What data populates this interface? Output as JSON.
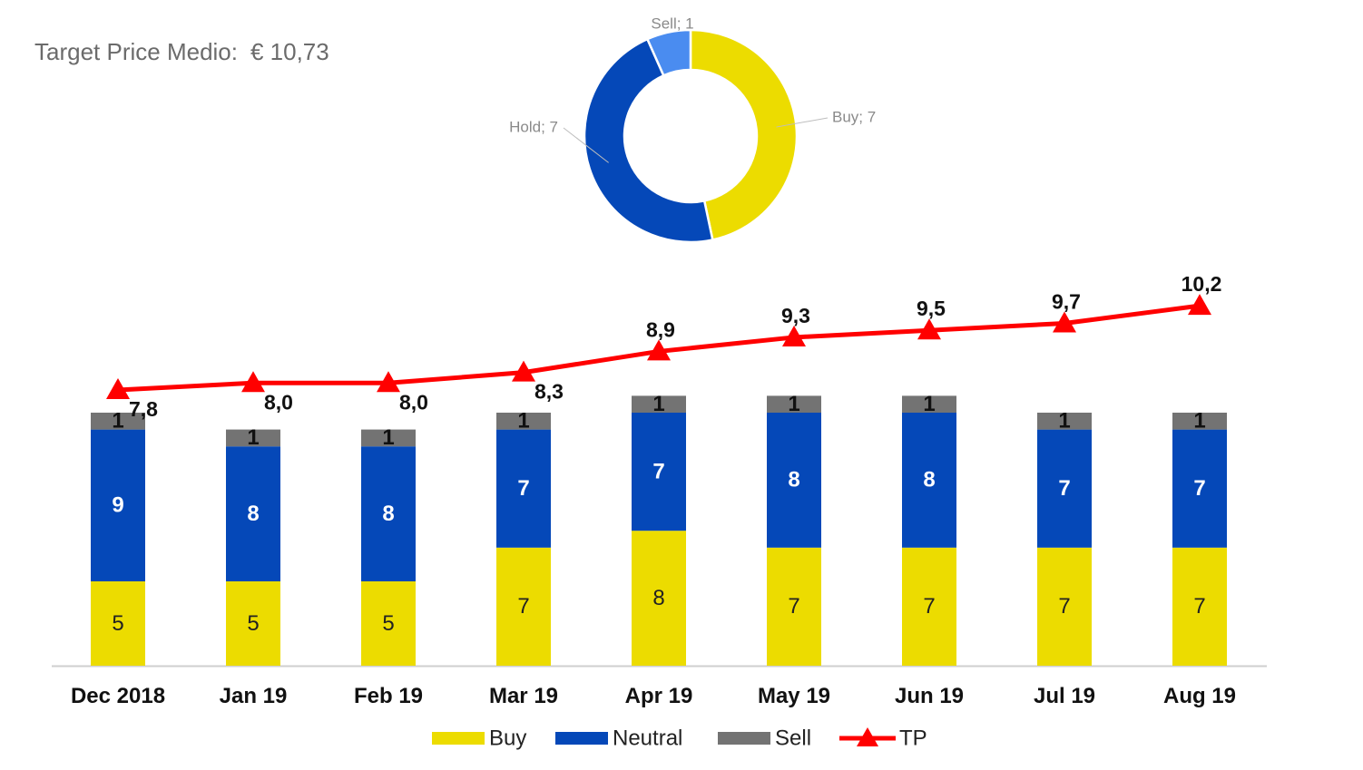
{
  "headline": {
    "label": "Target Price Medio:",
    "value": "€ 10,73"
  },
  "chart_data": [
    {
      "type": "pie",
      "donut": true,
      "slices": [
        {
          "name": "Buy",
          "value": 7,
          "label": "Buy; 7",
          "color": "#ecdc00"
        },
        {
          "name": "Hold",
          "value": 7,
          "label": "Hold; 7",
          "color": "#0548b8"
        },
        {
          "name": "Sell",
          "value": 1,
          "label": "Sell; 1",
          "color": "#4a8cf0"
        }
      ]
    },
    {
      "type": "bar",
      "stacked": true,
      "categories": [
        "Dec 2018",
        "Jan 19",
        "Feb 19",
        "Mar 19",
        "Apr 19",
        "May 19",
        "Jun 19",
        "Jul 19",
        "Aug 19"
      ],
      "series": [
        {
          "name": "Buy",
          "color": "#ecdc00",
          "label_color": "#222222",
          "label_bold": false,
          "values": [
            5,
            5,
            5,
            7,
            8,
            7,
            7,
            7,
            7
          ]
        },
        {
          "name": "Neutral",
          "color": "#0548b8",
          "label_color": "#ffffff",
          "label_bold": true,
          "values": [
            9,
            8,
            8,
            7,
            7,
            8,
            8,
            7,
            7
          ]
        },
        {
          "name": "Sell",
          "color": "#737373",
          "label_color": "#111111",
          "label_bold": true,
          "values": [
            1,
            1,
            1,
            1,
            1,
            1,
            1,
            1,
            1
          ]
        }
      ],
      "line": {
        "name": "TP",
        "color": "#ff0000",
        "marker": "triangle",
        "values": [
          7.8,
          8.0,
          8.0,
          8.3,
          8.9,
          9.3,
          9.5,
          9.7,
          10.2
        ],
        "labels": [
          "7,8",
          "8,0",
          "8,0",
          "8,3",
          "8,9",
          "9,3",
          "9,5",
          "9,7",
          "10,2"
        ],
        "label_position": [
          "below",
          "below",
          "below",
          "below",
          "above",
          "above",
          "above",
          "above",
          "above"
        ]
      },
      "legend": [
        "Buy",
        "Neutral",
        "Sell",
        "TP"
      ],
      "legend_position": "bottom"
    }
  ]
}
